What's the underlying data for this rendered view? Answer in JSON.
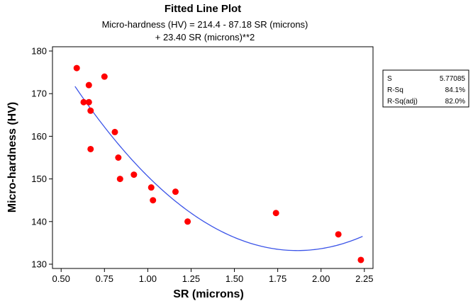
{
  "chart_data": {
    "type": "scatter",
    "title": "Fitted Line Plot",
    "subtitle_lines": [
      "Micro-hardness (HV) = 214.4 - 87.18 SR (microns)",
      "+ 23.40 SR (microns)**2"
    ],
    "xlabel": "SR (microns)",
    "ylabel": "Micro-hardness (HV)",
    "xlim": [
      0.45,
      2.3
    ],
    "ylim": [
      129,
      181
    ],
    "x_ticks": [
      "0.50",
      "0.75",
      "1.00",
      "1.25",
      "1.50",
      "1.75",
      "2.00",
      "2.25"
    ],
    "y_ticks": [
      "130",
      "140",
      "150",
      "160",
      "170",
      "180"
    ],
    "grid": false,
    "point_color": "#ff0000",
    "line_color": "#3b54e8",
    "points": [
      {
        "x": 0.59,
        "y": 176
      },
      {
        "x": 0.63,
        "y": 168
      },
      {
        "x": 0.66,
        "y": 172
      },
      {
        "x": 0.66,
        "y": 168
      },
      {
        "x": 0.67,
        "y": 166
      },
      {
        "x": 0.67,
        "y": 157
      },
      {
        "x": 0.75,
        "y": 174
      },
      {
        "x": 0.81,
        "y": 161
      },
      {
        "x": 0.83,
        "y": 155
      },
      {
        "x": 0.84,
        "y": 150
      },
      {
        "x": 0.92,
        "y": 151
      },
      {
        "x": 1.02,
        "y": 148
      },
      {
        "x": 1.03,
        "y": 145
      },
      {
        "x": 1.16,
        "y": 147
      },
      {
        "x": 1.23,
        "y": 140
      },
      {
        "x": 1.74,
        "y": 142
      },
      {
        "x": 2.1,
        "y": 137
      },
      {
        "x": 2.23,
        "y": 131
      }
    ],
    "fit": {
      "intercept": 214.4,
      "linear": -87.18,
      "quadratic": 23.4,
      "x_range": [
        0.58,
        2.24
      ]
    },
    "stats": [
      {
        "label": "S",
        "value": "5.77085"
      },
      {
        "label": "R-Sq",
        "value": "84.1%"
      },
      {
        "label": "R-Sq(adj)",
        "value": "82.0%"
      }
    ]
  }
}
